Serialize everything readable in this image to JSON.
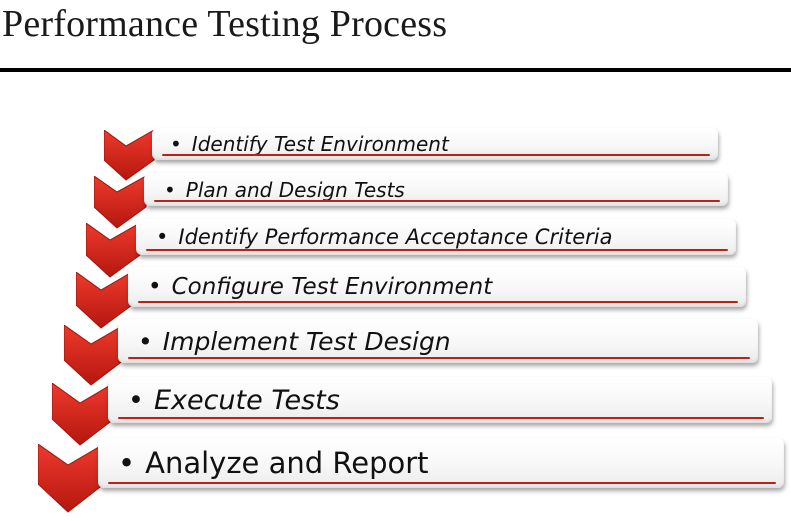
{
  "header": {
    "title": "Performance Testing Process"
  },
  "steps": [
    {
      "label": "Identify Test Environment"
    },
    {
      "label": "Plan and Design Tests"
    },
    {
      "label": "Identify Performance Acceptance Criteria"
    },
    {
      "label": "Configure Test Environment"
    },
    {
      "label": "Implement Test Design"
    },
    {
      "label": "Execute Tests"
    },
    {
      "label": "Analyze and Report"
    }
  ],
  "colors": {
    "chevron": "#d9221a",
    "chevron_dark": "#9e140e",
    "underline": "#c21f14",
    "title_rule": "#000000"
  }
}
